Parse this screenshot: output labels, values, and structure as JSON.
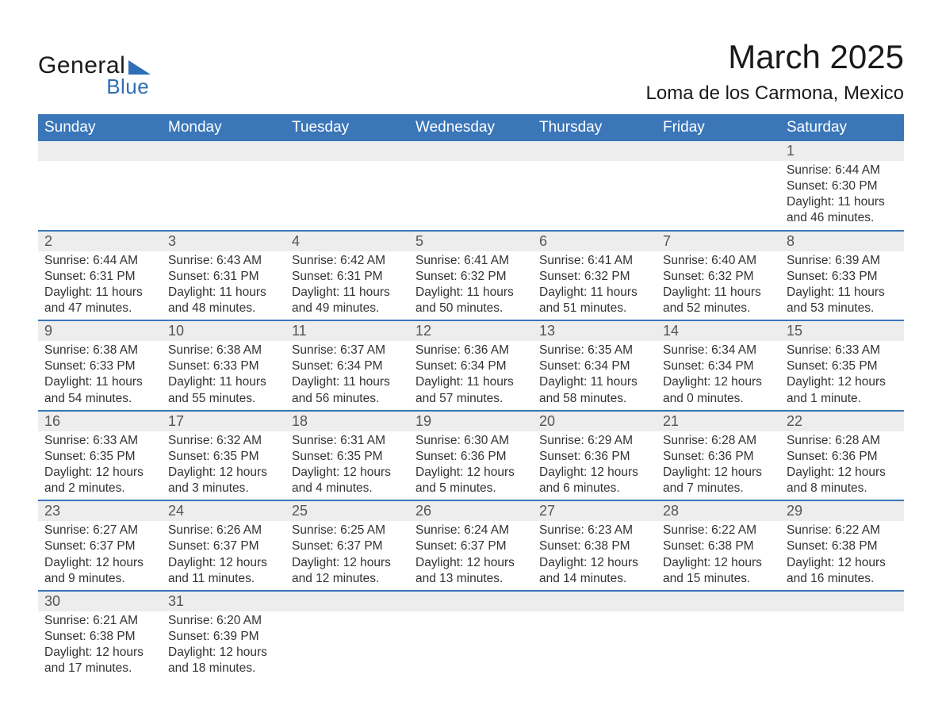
{
  "logo": {
    "text1": "General",
    "text2": "Blue",
    "accent_color": "#2f6eb5"
  },
  "title": "March 2025",
  "location": "Loma de los Carmona, Mexico",
  "theme": {
    "header_bg": "#3a76b8",
    "header_text": "#ffffff",
    "row_divider": "#3a76b8",
    "daynum_bg": "#ededed",
    "daynum_text": "#555555",
    "body_text": "#333333",
    "page_bg": "#ffffff",
    "title_fontsize": 42,
    "location_fontsize": 24,
    "dayheader_fontsize": 19,
    "daynum_fontsize": 18,
    "content_fontsize": 15.5
  },
  "day_headers": [
    "Sunday",
    "Monday",
    "Tuesday",
    "Wednesday",
    "Thursday",
    "Friday",
    "Saturday"
  ],
  "labels": {
    "sunrise": "Sunrise:",
    "sunset": "Sunset:",
    "daylight": "Daylight:"
  },
  "weeks": [
    [
      null,
      null,
      null,
      null,
      null,
      null,
      {
        "n": "1",
        "sunrise": "6:44 AM",
        "sunset": "6:30 PM",
        "daylight": "11 hours and 46 minutes."
      }
    ],
    [
      {
        "n": "2",
        "sunrise": "6:44 AM",
        "sunset": "6:31 PM",
        "daylight": "11 hours and 47 minutes."
      },
      {
        "n": "3",
        "sunrise": "6:43 AM",
        "sunset": "6:31 PM",
        "daylight": "11 hours and 48 minutes."
      },
      {
        "n": "4",
        "sunrise": "6:42 AM",
        "sunset": "6:31 PM",
        "daylight": "11 hours and 49 minutes."
      },
      {
        "n": "5",
        "sunrise": "6:41 AM",
        "sunset": "6:32 PM",
        "daylight": "11 hours and 50 minutes."
      },
      {
        "n": "6",
        "sunrise": "6:41 AM",
        "sunset": "6:32 PM",
        "daylight": "11 hours and 51 minutes."
      },
      {
        "n": "7",
        "sunrise": "6:40 AM",
        "sunset": "6:32 PM",
        "daylight": "11 hours and 52 minutes."
      },
      {
        "n": "8",
        "sunrise": "6:39 AM",
        "sunset": "6:33 PM",
        "daylight": "11 hours and 53 minutes."
      }
    ],
    [
      {
        "n": "9",
        "sunrise": "6:38 AM",
        "sunset": "6:33 PM",
        "daylight": "11 hours and 54 minutes."
      },
      {
        "n": "10",
        "sunrise": "6:38 AM",
        "sunset": "6:33 PM",
        "daylight": "11 hours and 55 minutes."
      },
      {
        "n": "11",
        "sunrise": "6:37 AM",
        "sunset": "6:34 PM",
        "daylight": "11 hours and 56 minutes."
      },
      {
        "n": "12",
        "sunrise": "6:36 AM",
        "sunset": "6:34 PM",
        "daylight": "11 hours and 57 minutes."
      },
      {
        "n": "13",
        "sunrise": "6:35 AM",
        "sunset": "6:34 PM",
        "daylight": "11 hours and 58 minutes."
      },
      {
        "n": "14",
        "sunrise": "6:34 AM",
        "sunset": "6:34 PM",
        "daylight": "12 hours and 0 minutes."
      },
      {
        "n": "15",
        "sunrise": "6:33 AM",
        "sunset": "6:35 PM",
        "daylight": "12 hours and 1 minute."
      }
    ],
    [
      {
        "n": "16",
        "sunrise": "6:33 AM",
        "sunset": "6:35 PM",
        "daylight": "12 hours and 2 minutes."
      },
      {
        "n": "17",
        "sunrise": "6:32 AM",
        "sunset": "6:35 PM",
        "daylight": "12 hours and 3 minutes."
      },
      {
        "n": "18",
        "sunrise": "6:31 AM",
        "sunset": "6:35 PM",
        "daylight": "12 hours and 4 minutes."
      },
      {
        "n": "19",
        "sunrise": "6:30 AM",
        "sunset": "6:36 PM",
        "daylight": "12 hours and 5 minutes."
      },
      {
        "n": "20",
        "sunrise": "6:29 AM",
        "sunset": "6:36 PM",
        "daylight": "12 hours and 6 minutes."
      },
      {
        "n": "21",
        "sunrise": "6:28 AM",
        "sunset": "6:36 PM",
        "daylight": "12 hours and 7 minutes."
      },
      {
        "n": "22",
        "sunrise": "6:28 AM",
        "sunset": "6:36 PM",
        "daylight": "12 hours and 8 minutes."
      }
    ],
    [
      {
        "n": "23",
        "sunrise": "6:27 AM",
        "sunset": "6:37 PM",
        "daylight": "12 hours and 9 minutes."
      },
      {
        "n": "24",
        "sunrise": "6:26 AM",
        "sunset": "6:37 PM",
        "daylight": "12 hours and 11 minutes."
      },
      {
        "n": "25",
        "sunrise": "6:25 AM",
        "sunset": "6:37 PM",
        "daylight": "12 hours and 12 minutes."
      },
      {
        "n": "26",
        "sunrise": "6:24 AM",
        "sunset": "6:37 PM",
        "daylight": "12 hours and 13 minutes."
      },
      {
        "n": "27",
        "sunrise": "6:23 AM",
        "sunset": "6:38 PM",
        "daylight": "12 hours and 14 minutes."
      },
      {
        "n": "28",
        "sunrise": "6:22 AM",
        "sunset": "6:38 PM",
        "daylight": "12 hours and 15 minutes."
      },
      {
        "n": "29",
        "sunrise": "6:22 AM",
        "sunset": "6:38 PM",
        "daylight": "12 hours and 16 minutes."
      }
    ],
    [
      {
        "n": "30",
        "sunrise": "6:21 AM",
        "sunset": "6:38 PM",
        "daylight": "12 hours and 17 minutes."
      },
      {
        "n": "31",
        "sunrise": "6:20 AM",
        "sunset": "6:39 PM",
        "daylight": "12 hours and 18 minutes."
      },
      null,
      null,
      null,
      null,
      null
    ]
  ]
}
